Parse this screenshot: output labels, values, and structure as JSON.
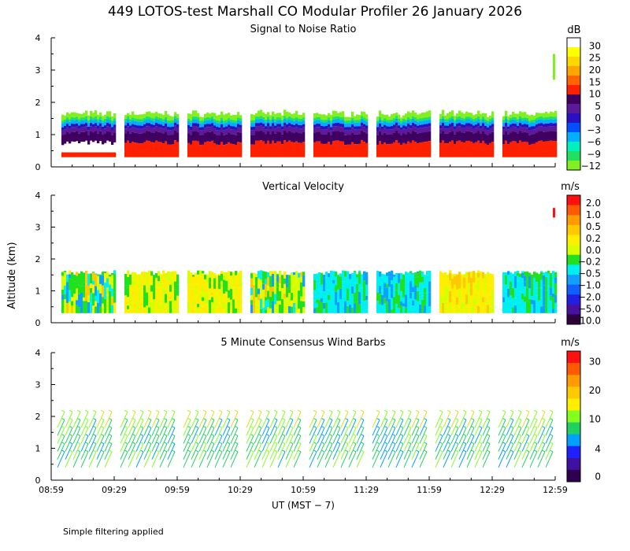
{
  "figure": {
    "title": "449 LOTOS-test Marshall CO Modular Profiler 26 January 2026",
    "ylabel": "Altitude (km)",
    "xlabel": "UT  (MST − 7)",
    "note": "Simple filtering applied",
    "x_ticks": [
      "08:59",
      "09:29",
      "09:59",
      "10:29",
      "10:59",
      "11:29",
      "11:59",
      "12:29",
      "12:59"
    ],
    "y_ticks": [
      "0",
      "1",
      "2",
      "3",
      "4"
    ],
    "ylim": [
      0,
      4
    ]
  },
  "chart_data": [
    {
      "type": "heatmap",
      "title": "Signal to Noise Ratio",
      "unit": "dB",
      "ylim": [
        0,
        4
      ],
      "colorbar": {
        "labels": [
          "30",
          "25",
          "20",
          "15",
          "10",
          "5",
          "0",
          "−3",
          "−6",
          "−9",
          "−12"
        ],
        "colors": [
          "#ffffff",
          "#ffff00",
          "#ffd700",
          "#ffa500",
          "#ff6600",
          "#ff2000",
          "#400060",
          "#5a1a9a",
          "#2a10c0",
          "#0050ff",
          "#00b0ff",
          "#00f0c0",
          "#20e060",
          "#80f020"
        ]
      },
      "layers": [
        {
          "label": "10",
          "top_km": 0.75,
          "bottom_km": 0.3
        },
        {
          "label": "5",
          "top_km": 1.05,
          "bottom_km": 0.75
        },
        {
          "label": "0",
          "top_km": 1.2,
          "bottom_km": 1.05
        },
        {
          "label": "−3",
          "top_km": 1.3,
          "bottom_km": 1.2
        },
        {
          "label": "−6",
          "top_km": 1.42,
          "bottom_km": 1.3
        },
        {
          "label": "−9",
          "top_km": 1.5,
          "bottom_km": 1.42
        },
        {
          "label": "−12",
          "top_km": 1.6,
          "bottom_km": 1.5
        }
      ]
    },
    {
      "type": "heatmap",
      "title": "Vertical Velocity",
      "unit": "m/s",
      "ylim": [
        0,
        4
      ],
      "colorbar": {
        "labels": [
          "2.0",
          "1.0",
          "0.5",
          "0.2",
          "0.0",
          "−0.2",
          "−0.5",
          "−1.0",
          "−2.0",
          "−5.0",
          "−10.0"
        ],
        "colors": [
          "#ff1010",
          "#ff5a00",
          "#ff9a00",
          "#ffc800",
          "#ffee00",
          "#d8ff00",
          "#20e020",
          "#00f0f0",
          "#10a0ff",
          "#1060ff",
          "#2020e0",
          "#4a10a0",
          "#300040"
        ]
      },
      "data_top_km": 1.6,
      "data_bottom_km": 0.3
    },
    {
      "type": "wind_barbs",
      "title": "5 Minute Consensus Wind Barbs",
      "unit": "m/s",
      "ylim": [
        0,
        4
      ],
      "colorbar": {
        "labels": [
          "30",
          "20",
          "10",
          "4",
          "0"
        ],
        "colors": [
          "#ff1010",
          "#ff5a00",
          "#ff9a00",
          "#ffc800",
          "#ffee00",
          "#80ff20",
          "#20d060",
          "#00a0ff",
          "#2020ff",
          "#4010a0",
          "#300050"
        ]
      },
      "data_top_km": 2.0,
      "data_bottom_km": 0.3
    }
  ]
}
